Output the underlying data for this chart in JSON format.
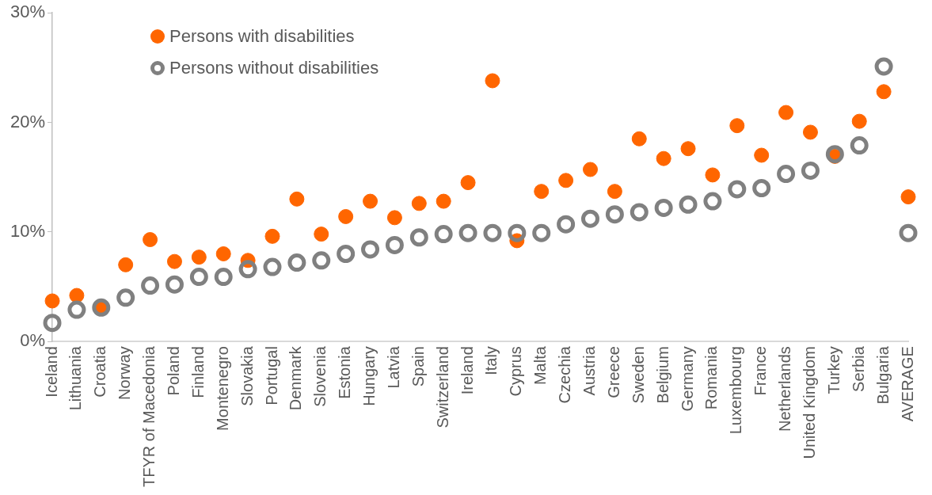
{
  "chart_data": {
    "type": "scatter",
    "categories": [
      "Iceland",
      "Lithuania",
      "Croatia",
      "Norway",
      "TFYR of Macedonia",
      "Poland",
      "Finland",
      "Montenegro",
      "Slovakia",
      "Portugal",
      "Denmark",
      "Slovenia",
      "Estonia",
      "Hungary",
      "Latvia",
      "Spain",
      "Switzerland",
      "Ireland",
      "Italy",
      "Cyprus",
      "Malta",
      "Czechia",
      "Austria",
      "Greece",
      "Sweden",
      "Belgium",
      "Germany",
      "Romania",
      "Luxembourg",
      "France",
      "Netherlands",
      "United Kingdom",
      "Turkey",
      "Serbia",
      "Bulgaria",
      "AVERAGE"
    ],
    "series": [
      {
        "name": "Persons with disabilities",
        "color": "#ff6600",
        "values": [
          3.7,
          4.2,
          3.1,
          7.0,
          9.3,
          7.3,
          7.7,
          8.0,
          7.4,
          9.6,
          13.0,
          9.8,
          11.4,
          12.8,
          11.3,
          12.6,
          12.8,
          14.5,
          23.8,
          9.2,
          13.7,
          14.7,
          15.7,
          13.7,
          18.5,
          16.7,
          17.6,
          15.2,
          19.7,
          17.0,
          20.9,
          19.1,
          16.9,
          20.1,
          22.8,
          13.2
        ]
      },
      {
        "name": "Persons without disabilities",
        "color": "#808080",
        "values": [
          1.7,
          2.9,
          3.1,
          4.0,
          5.1,
          5.2,
          5.9,
          5.9,
          6.6,
          6.8,
          7.2,
          7.4,
          8.0,
          8.4,
          8.8,
          9.5,
          9.8,
          9.9,
          9.9,
          9.9,
          9.9,
          10.7,
          11.2,
          11.6,
          11.8,
          12.2,
          12.5,
          12.8,
          13.9,
          14.0,
          15.3,
          15.6,
          17.1,
          17.9,
          25.1,
          9.9
        ]
      }
    ],
    "ylim": [
      0,
      30
    ],
    "yticks": [
      {
        "value": 0,
        "label": "0%"
      },
      {
        "value": 10,
        "label": "10%"
      },
      {
        "value": 20,
        "label": "20%"
      },
      {
        "value": 30,
        "label": "30%"
      }
    ],
    "grid": false,
    "legend": "top left",
    "marker": "circle"
  }
}
